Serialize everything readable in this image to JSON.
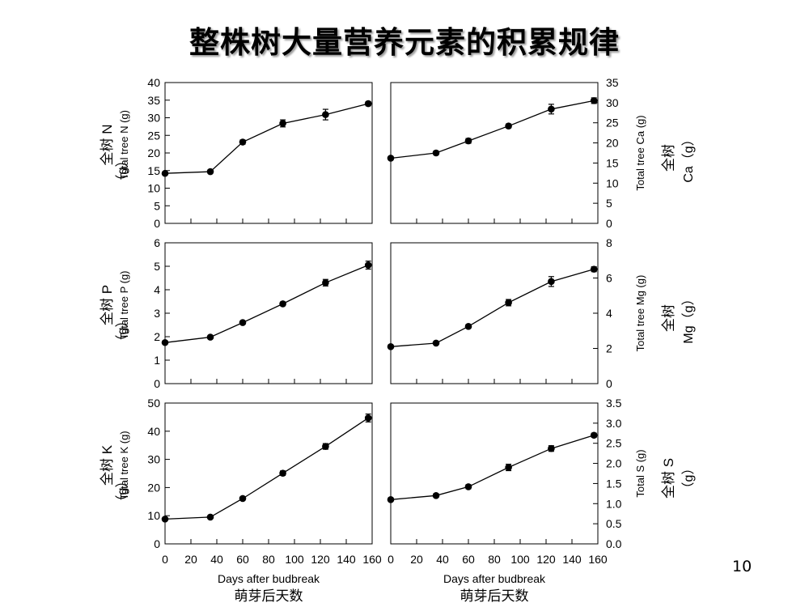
{
  "slide": {
    "title": "整株树大量营养元素的积累规律",
    "page_number": "10"
  },
  "chart_data": [
    {
      "type": "line",
      "element": "N",
      "ylabel_en": "Total tree N (g)",
      "ylabel_zh": "全树 N",
      "ylabel_unit": "（g）",
      "ylim": [
        0,
        40
      ],
      "yticks": [
        "0",
        "5",
        "10",
        "15",
        "20",
        "25",
        "30",
        "35",
        "40"
      ],
      "x": [
        0,
        35,
        60,
        91,
        124,
        157
      ],
      "y": [
        14.2,
        14.7,
        23.1,
        28.4,
        30.9,
        34.0
      ],
      "err": [
        0.4,
        0.5,
        0.6,
        1.0,
        1.5,
        0.6
      ]
    },
    {
      "type": "line",
      "element": "Ca",
      "ylabel_en": "Total tree Ca (g)",
      "ylabel_zh": "全树",
      "ylabel_unit": "Ca（g）",
      "ylim": [
        0,
        35
      ],
      "yticks": [
        "0",
        "5",
        "10",
        "15",
        "20",
        "25",
        "30",
        "35"
      ],
      "x": [
        0,
        35,
        60,
        91,
        124,
        157
      ],
      "y": [
        16.2,
        17.5,
        20.5,
        24.2,
        28.4,
        30.5
      ],
      "err": [
        0.4,
        0.5,
        0.6,
        0.5,
        1.2,
        0.7
      ]
    },
    {
      "type": "line",
      "element": "P",
      "ylabel_en": "Total tree P (g)",
      "ylabel_zh": "全树 P",
      "ylabel_unit": "（g）",
      "ylim": [
        0,
        6
      ],
      "yticks": [
        "0",
        "1",
        "2",
        "3",
        "4",
        "5",
        "6"
      ],
      "x": [
        0,
        35,
        60,
        91,
        124,
        157
      ],
      "y": [
        1.75,
        1.98,
        2.6,
        3.4,
        4.3,
        5.05
      ],
      "err": [
        0.04,
        0.05,
        0.06,
        0.08,
        0.14,
        0.17
      ]
    },
    {
      "type": "line",
      "element": "Mg",
      "ylabel_en": "Total tree Mg (g)",
      "ylabel_zh": "全树",
      "ylabel_unit": "Mg（g）",
      "ylim": [
        0,
        8
      ],
      "yticks": [
        "0",
        "2",
        "4",
        "6",
        "8"
      ],
      "x": [
        0,
        35,
        60,
        91,
        124,
        157
      ],
      "y": [
        2.1,
        2.3,
        3.25,
        4.6,
        5.8,
        6.5
      ],
      "err": [
        0.05,
        0.07,
        0.1,
        0.18,
        0.28,
        0.14
      ]
    },
    {
      "type": "line",
      "element": "K",
      "ylabel_en": "Total tree K (g)",
      "ylabel_zh": "全树 K",
      "ylabel_unit": "（g）",
      "ylim": [
        0,
        50
      ],
      "yticks": [
        "0",
        "10",
        "20",
        "30",
        "40",
        "50"
      ],
      "x": [
        0,
        35,
        60,
        91,
        124,
        157
      ],
      "y": [
        8.8,
        9.5,
        16.1,
        25.1,
        34.6,
        44.7
      ],
      "err": [
        0.3,
        0.4,
        0.6,
        0.8,
        1.0,
        1.4
      ]
    },
    {
      "type": "line",
      "element": "S",
      "ylabel_en": "Total S (g)",
      "ylabel_zh": "全树 S",
      "ylabel_unit": "（g）",
      "ylim": [
        0,
        3.5
      ],
      "yticks": [
        "0.0",
        "0.5",
        "1.0",
        "1.5",
        "2.0",
        "2.5",
        "3.0",
        "3.5"
      ],
      "x": [
        0,
        35,
        60,
        91,
        124,
        157
      ],
      "y": [
        1.1,
        1.2,
        1.42,
        1.9,
        2.37,
        2.7
      ],
      "err": [
        0.03,
        0.04,
        0.05,
        0.08,
        0.07,
        0.05
      ]
    }
  ],
  "x_axis": {
    "xlim": [
      0,
      160
    ],
    "xticks": [
      "0",
      "20",
      "40",
      "60",
      "80",
      "100",
      "120",
      "140",
      "160"
    ],
    "xlabel_en": "Days after budbreak",
    "xlabel_zh": "萌芽后天数"
  }
}
